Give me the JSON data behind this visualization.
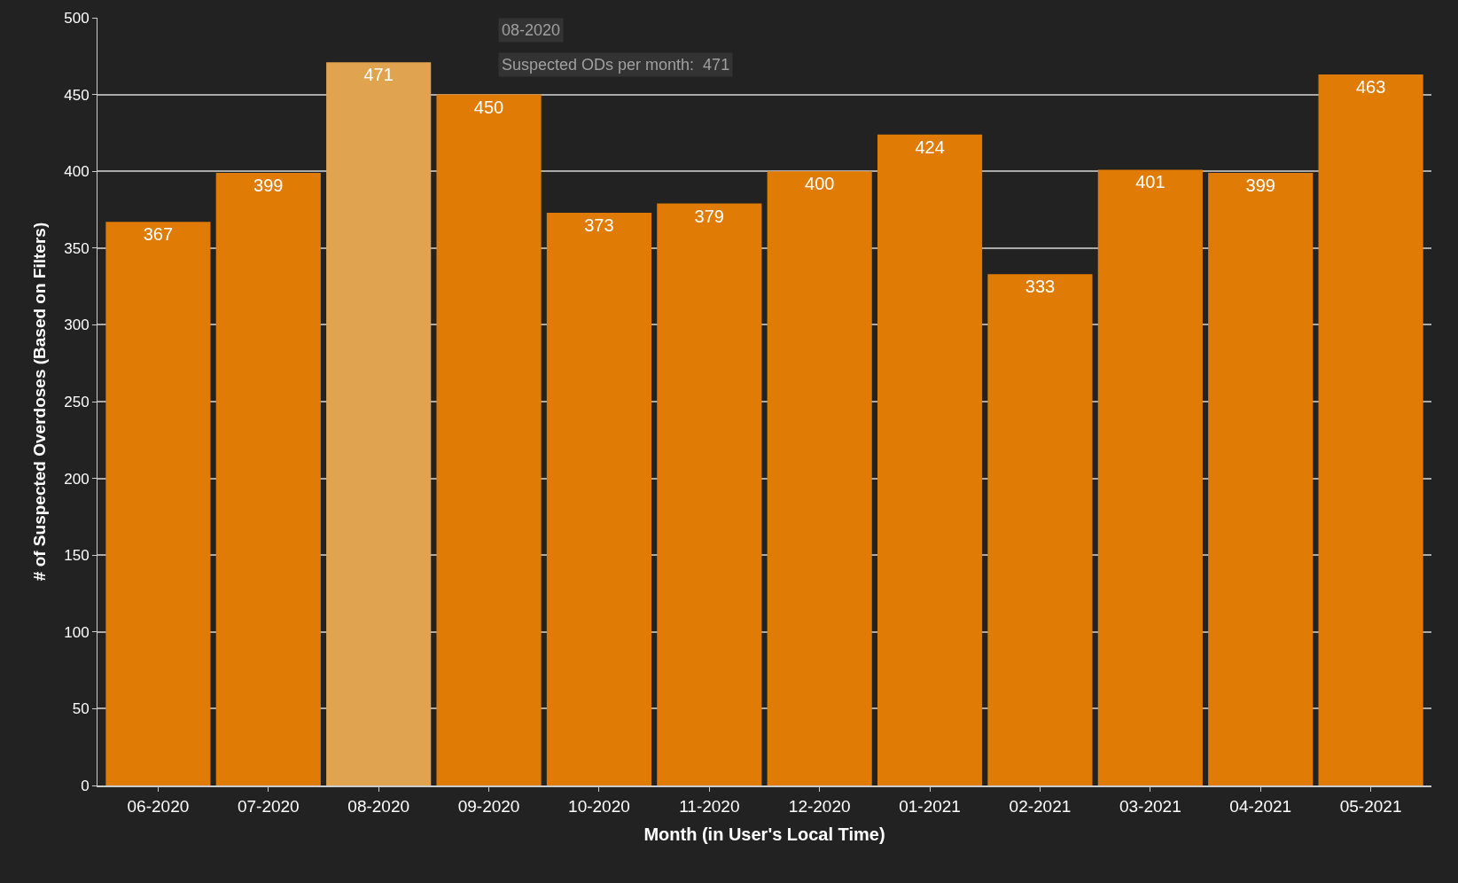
{
  "chart_data": {
    "type": "bar",
    "xlabel": "Month (in User's Local Time)",
    "ylabel": "# of Suspected Overdoses (Based on Filters)",
    "categories": [
      "06-2020",
      "07-2020",
      "08-2020",
      "09-2020",
      "10-2020",
      "11-2020",
      "12-2020",
      "01-2021",
      "02-2021",
      "03-2021",
      "04-2021",
      "05-2021"
    ],
    "values": [
      367,
      399,
      471,
      450,
      373,
      379,
      400,
      424,
      333,
      401,
      399,
      463
    ],
    "colors": [
      "#e07b05",
      "#e07b05",
      "#e0a450",
      "#e07b05",
      "#e07b05",
      "#e07b05",
      "#e07b05",
      "#e07b05",
      "#e07b05",
      "#e07b05",
      "#e07b05",
      "#e07b05"
    ],
    "ylim": [
      0,
      500
    ],
    "yticks": [
      0,
      50,
      100,
      150,
      200,
      250,
      300,
      350,
      400,
      450,
      500
    ],
    "grid": "y",
    "data_labels": true,
    "legend": false,
    "annotations": [
      "08-2020",
      "Suspected ODs per month:  471"
    ]
  }
}
